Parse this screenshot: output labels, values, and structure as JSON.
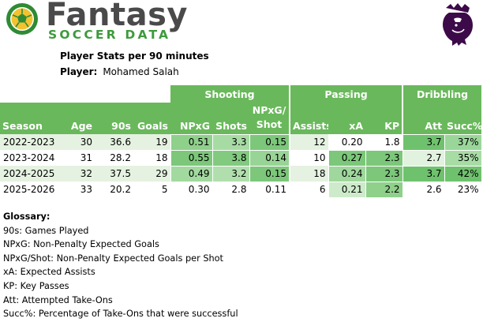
{
  "brand": {
    "title": "Fantasy",
    "subtitle": "SOCCER DATA"
  },
  "report": {
    "title": "Player Stats per 90 minutes",
    "player_label": "Player:",
    "player_name": "Mohamed Salah"
  },
  "table": {
    "groups": {
      "shooting": "Shooting",
      "passing": "Passing",
      "dribbling": "Dribbling"
    },
    "columns": {
      "season": "Season",
      "age": "Age",
      "nineties": "90s",
      "goals": "Goals",
      "npxg": "NPxG",
      "shots": "Shots",
      "npxg_shot_1": "NPxG/",
      "npxg_shot_2": "Shot",
      "assists": "Assists",
      "xa": "xA",
      "kp": "KP",
      "att": "Att",
      "succ": "Succ%"
    },
    "rows": [
      {
        "season": "2022-2023",
        "age": "30",
        "nineties": "36.6",
        "goals": "19",
        "npxg": "0.51",
        "shots": "3.3",
        "npxg_shot": "0.15",
        "assists": "12",
        "xa": "0.20",
        "kp": "1.8",
        "att": "3.7",
        "succ": "37%"
      },
      {
        "season": "2023-2024",
        "age": "31",
        "nineties": "28.2",
        "goals": "18",
        "npxg": "0.55",
        "shots": "3.8",
        "npxg_shot": "0.14",
        "assists": "10",
        "xa": "0.27",
        "kp": "2.3",
        "att": "2.7",
        "succ": "35%"
      },
      {
        "season": "2024-2025",
        "age": "32",
        "nineties": "37.5",
        "goals": "29",
        "npxg": "0.49",
        "shots": "3.2",
        "npxg_shot": "0.15",
        "assists": "18",
        "xa": "0.24",
        "kp": "2.3",
        "att": "3.7",
        "succ": "42%"
      },
      {
        "season": "2025-2026",
        "age": "33",
        "nineties": "20.2",
        "goals": "5",
        "npxg": "0.30",
        "shots": "2.8",
        "npxg_shot": "0.11",
        "assists": "6",
        "xa": "0.21",
        "kp": "2.2",
        "att": "2.6",
        "succ": "23%"
      }
    ],
    "heat_colors": {
      "npxg": [
        "#8fd08b",
        "#7cc77a",
        "#a2d99f",
        "#ffffff"
      ],
      "shots": [
        "#a7dba4",
        "#82ca80",
        "#b0dfad",
        "#ffffff"
      ],
      "npxg_shot": [
        "#7cc77a",
        "#98d495",
        "#7cc77a",
        "#ffffff"
      ],
      "xa": [
        "#ffffff",
        "#7cc77a",
        "#9fd79c",
        "#cdebca"
      ],
      "kp": [
        "#ffffff",
        "#7cc77a",
        "#7cc77a",
        "#8fd08b"
      ],
      "att": [
        "#6fc26d",
        "#e1f2de",
        "#6fc26d",
        "#ffffff"
      ],
      "succ": [
        "#9ad69a",
        "#a8dca5",
        "#6fc26d",
        "#ffffff"
      ]
    }
  },
  "glossary": {
    "heading": "Glossary:",
    "items": [
      "90s: Games Played",
      "NPxG: Non-Penalty Expected Goals",
      "NPxG/Shot: Non-Penalty Expected Goals per Shot",
      "xA: Expected Assists",
      "KP: Key Passes",
      "Att: Attempted Take-Ons",
      "Succ%: Percentage of Take-Ons that were successful"
    ]
  },
  "icons": {
    "brand_logo": "soccer-ball-icon",
    "league_logo": "lion-crest-icon"
  },
  "colors": {
    "accent_green": "#6ab85c",
    "alt_row": "#e5f2e1",
    "brand_gray": "#4a4a4a",
    "brand_green": "#3e9a3c"
  }
}
